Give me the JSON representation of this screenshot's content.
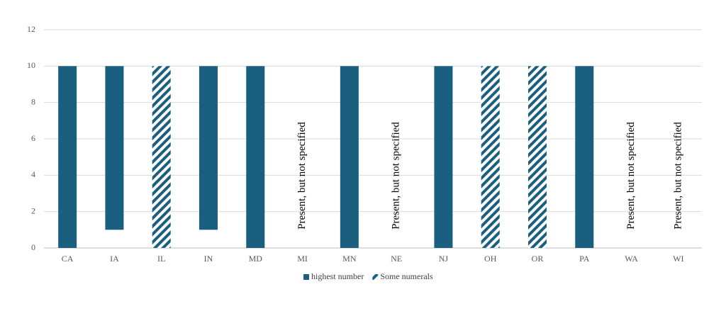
{
  "chart_data": {
    "type": "floating-bar",
    "categories": [
      "CA",
      "IA",
      "IL",
      "IN",
      "MD",
      "MI",
      "MN",
      "NE",
      "NJ",
      "OH",
      "OR",
      "PA",
      "WA",
      "WI"
    ],
    "series": [
      {
        "name": "highest number",
        "color": "#1a5f7f",
        "pattern": "solid",
        "low": [
          0,
          1,
          null,
          1,
          0,
          null,
          0,
          null,
          0,
          null,
          null,
          0,
          null,
          null
        ],
        "values": [
          10,
          10,
          null,
          10,
          10,
          null,
          10,
          null,
          10,
          null,
          null,
          10,
          null,
          null
        ]
      },
      {
        "name": "Some numerals",
        "color": "#1a5f7f",
        "pattern": "hatched",
        "low": [
          null,
          null,
          0,
          null,
          null,
          null,
          null,
          null,
          null,
          0,
          0,
          null,
          null,
          null
        ],
        "values": [
          null,
          null,
          10,
          null,
          null,
          null,
          null,
          null,
          null,
          10,
          10,
          null,
          null,
          null
        ]
      }
    ],
    "annotations": [
      {
        "category": "MI",
        "text": "Present, but not specified"
      },
      {
        "category": "NE",
        "text": "Present, but not specified"
      },
      {
        "category": "WA",
        "text": "Present, but not specified"
      },
      {
        "category": "WI",
        "text": "Present, but not specified"
      }
    ],
    "ylim": [
      0,
      12
    ],
    "yticks": [
      0,
      2,
      4,
      6,
      8,
      10,
      12
    ],
    "grid": true,
    "legend": "bottom"
  }
}
